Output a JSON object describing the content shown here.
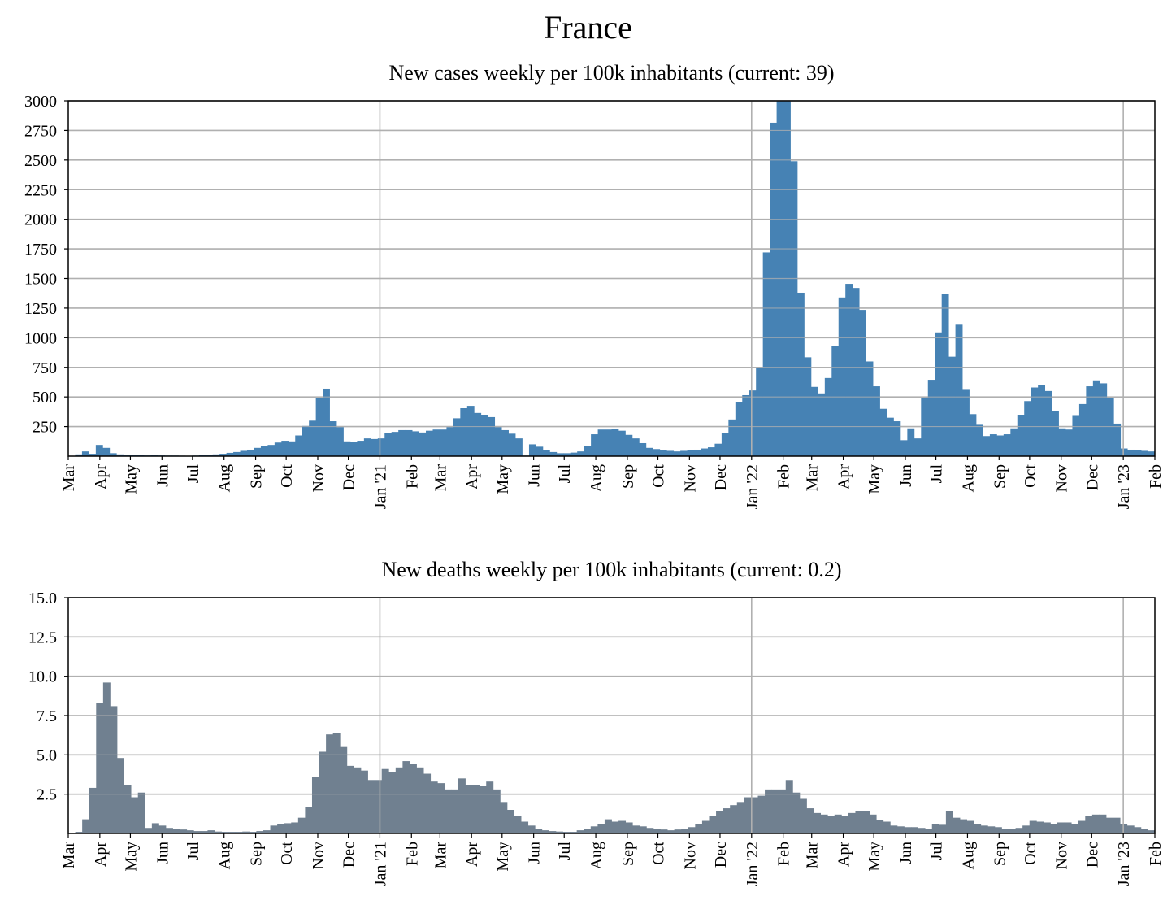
{
  "figure": {
    "title": "France"
  },
  "chart_data": [
    {
      "type": "bar",
      "title": "New cases weekly per 100k inhabitants (current: 39)",
      "xlabel": "",
      "ylabel": "",
      "ylim": [
        0,
        3000
      ],
      "yticks": [
        "250",
        "500",
        "750",
        "1000",
        "1250",
        "1500",
        "1750",
        "2000",
        "2250",
        "2500",
        "2750",
        "3000"
      ],
      "ytick_values": [
        250,
        500,
        750,
        1000,
        1250,
        1500,
        1750,
        2000,
        2250,
        2500,
        2750,
        3000
      ],
      "xtick_labels": [
        "Mar",
        "Apr",
        "May",
        "Jun",
        "Jul",
        "Aug",
        "Sep",
        "Oct",
        "Nov",
        "Dec",
        "Jan '21",
        "Feb",
        "Mar",
        "Apr",
        "May",
        "Jun",
        "Jul",
        "Aug",
        "Sep",
        "Oct",
        "Nov",
        "Dec",
        "Jan '22",
        "Feb",
        "Mar",
        "Apr",
        "May",
        "Jun",
        "Jul",
        "Aug",
        "Sep",
        "Oct",
        "Nov",
        "Dec",
        "Jan '23",
        "Feb"
      ],
      "year_gridlines": [
        "Jan '21",
        "Jan '22",
        "Jan '23"
      ],
      "grid": true,
      "color": "#4682b4",
      "x_start": "2020-03-01",
      "x_end": "2023-02-01",
      "values": [
        2,
        15,
        40,
        20,
        95,
        70,
        25,
        15,
        12,
        10,
        8,
        6,
        12,
        6,
        5,
        5,
        4,
        3,
        5,
        8,
        12,
        15,
        20,
        28,
        35,
        45,
        55,
        70,
        85,
        95,
        115,
        130,
        125,
        175,
        255,
        300,
        490,
        570,
        295,
        245,
        125,
        120,
        130,
        150,
        145,
        150,
        195,
        205,
        220,
        220,
        210,
        200,
        215,
        225,
        225,
        245,
        320,
        405,
        425,
        365,
        350,
        330,
        245,
        220,
        190,
        150,
        5,
        100,
        80,
        50,
        35,
        25,
        25,
        30,
        40,
        85,
        185,
        225,
        225,
        230,
        215,
        180,
        150,
        110,
        70,
        60,
        50,
        45,
        40,
        45,
        50,
        55,
        65,
        75,
        105,
        195,
        310,
        455,
        515,
        555,
        750,
        1720,
        2815,
        3000,
        3000,
        2490,
        1380,
        835,
        585,
        530,
        660,
        930,
        1340,
        1455,
        1420,
        1235,
        800,
        590,
        400,
        325,
        295,
        135,
        235,
        150,
        495,
        645,
        1045,
        1370,
        840,
        1110,
        560,
        355,
        265,
        170,
        185,
        175,
        185,
        235,
        350,
        465,
        580,
        600,
        550,
        380,
        235,
        225,
        340,
        440,
        590,
        640,
        615,
        490,
        275,
        65,
        55,
        50,
        45,
        40
      ],
      "bar_labels_note": ""
    },
    {
      "type": "bar",
      "title": "New deaths weekly per 100k inhabitants (current: 0.2)",
      "xlabel": "",
      "ylabel": "",
      "ylim": [
        0,
        15
      ],
      "yticks": [
        "2.5",
        "5.0",
        "7.5",
        "10.0",
        "12.5",
        "15.0"
      ],
      "ytick_values": [
        2.5,
        5,
        7.5,
        10,
        12.5,
        15
      ],
      "xtick_labels": [
        "Mar",
        "Apr",
        "May",
        "Jun",
        "Jul",
        "Aug",
        "Sep",
        "Oct",
        "Nov",
        "Dec",
        "Jan '21",
        "Feb",
        "Mar",
        "Apr",
        "May",
        "Jun",
        "Jul",
        "Aug",
        "Sep",
        "Oct",
        "Nov",
        "Dec",
        "Jan '22",
        "Feb",
        "Mar",
        "Apr",
        "May",
        "Jun",
        "Jul",
        "Aug",
        "Sep",
        "Oct",
        "Nov",
        "Dec",
        "Jan '23",
        "Feb"
      ],
      "year_gridlines": [
        "Jan '21",
        "Jan '22",
        "Jan '23"
      ],
      "grid": true,
      "color": "#708090",
      "x_start": "2020-03-01",
      "x_end": "2023-02-01",
      "values": [
        0.05,
        0.1,
        0.9,
        2.9,
        8.3,
        9.6,
        8.1,
        4.8,
        3.1,
        2.3,
        2.6,
        0.35,
        0.65,
        0.5,
        0.35,
        0.3,
        0.25,
        0.2,
        0.15,
        0.15,
        0.2,
        0.12,
        0.1,
        0.1,
        0.1,
        0.12,
        0.1,
        0.15,
        0.2,
        0.5,
        0.6,
        0.65,
        0.7,
        1.0,
        1.7,
        3.6,
        5.2,
        6.3,
        6.4,
        5.5,
        4.3,
        4.2,
        4.0,
        3.4,
        3.4,
        4.1,
        3.9,
        4.2,
        4.6,
        4.4,
        4.2,
        3.8,
        3.3,
        3.2,
        2.8,
        2.8,
        3.5,
        3.1,
        3.1,
        3.0,
        3.3,
        2.8,
        2.0,
        1.5,
        1.1,
        0.75,
        0.5,
        0.3,
        0.2,
        0.15,
        0.12,
        0.1,
        0.1,
        0.2,
        0.3,
        0.45,
        0.6,
        0.9,
        0.75,
        0.8,
        0.7,
        0.5,
        0.45,
        0.35,
        0.3,
        0.25,
        0.2,
        0.25,
        0.3,
        0.4,
        0.6,
        0.8,
        1.1,
        1.4,
        1.6,
        1.8,
        2.0,
        2.3,
        2.3,
        2.4,
        2.8,
        2.8,
        2.8,
        3.4,
        2.6,
        2.2,
        1.6,
        1.3,
        1.2,
        1.1,
        1.2,
        1.1,
        1.3,
        1.4,
        1.4,
        1.2,
        0.85,
        0.75,
        0.5,
        0.45,
        0.4,
        0.4,
        0.35,
        0.3,
        0.6,
        0.55,
        1.4,
        1.0,
        0.9,
        0.8,
        0.6,
        0.5,
        0.45,
        0.4,
        0.3,
        0.3,
        0.35,
        0.5,
        0.8,
        0.75,
        0.7,
        0.6,
        0.7,
        0.7,
        0.6,
        0.8,
        1.1,
        1.2,
        1.2,
        1.0,
        1.0,
        0.6,
        0.5,
        0.4,
        0.3,
        0.2
      ]
    }
  ]
}
